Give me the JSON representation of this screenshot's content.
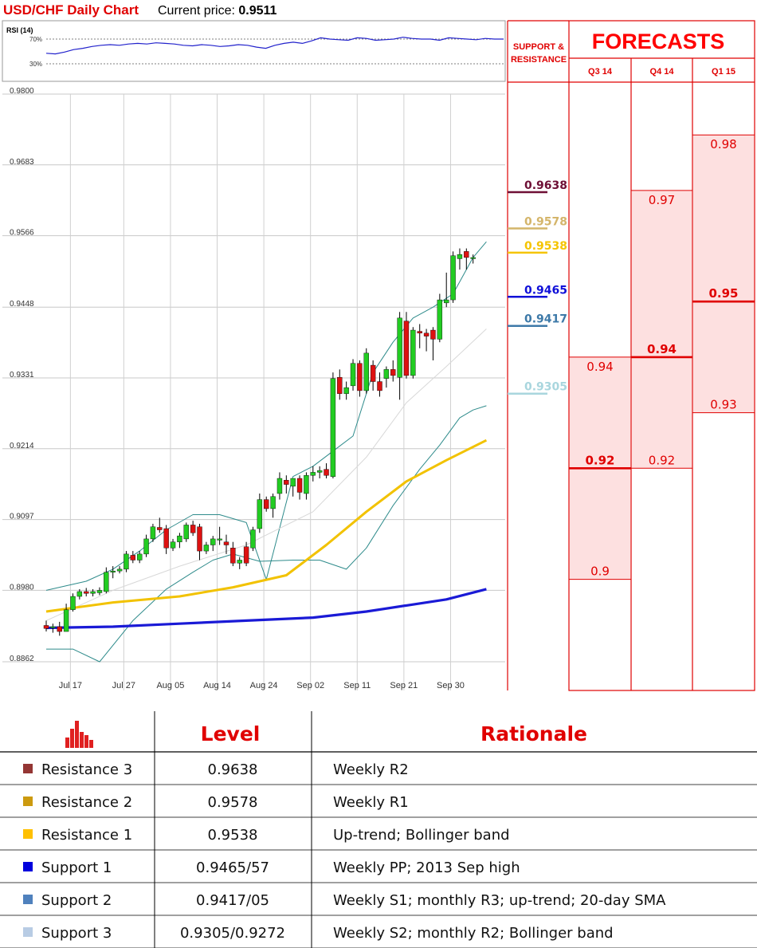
{
  "header": {
    "title": "USD/CHF Daily Chart",
    "price_label": "Current price:",
    "price_value": "0.9511"
  },
  "rsi": {
    "label": "RSI (14)",
    "levels": [
      "70%",
      "30%"
    ],
    "values": [
      47,
      46,
      49,
      53,
      55,
      58,
      60,
      61,
      60,
      62,
      63,
      62,
      64,
      63,
      62,
      60,
      59,
      61,
      60,
      58,
      59,
      61,
      60,
      57,
      55,
      60,
      63,
      65,
      63,
      67,
      72,
      70,
      69,
      68,
      72,
      71,
      68,
      69,
      70,
      73,
      71,
      70,
      70,
      68,
      72,
      71,
      70,
      69,
      71,
      70,
      70
    ]
  },
  "chart_data": [
    {
      "type": "candlestick",
      "title": "USD/CHF Daily Chart",
      "y_ticks": [
        "0.9800",
        "0.9683",
        "0.9566",
        "0.9448",
        "0.9331",
        "0.9214",
        "0.9097",
        "0.8980",
        "0.8862"
      ],
      "ylim": [
        0.8862,
        0.98
      ],
      "x_ticks": [
        "Jul 17",
        "Jul 27",
        "Aug 05",
        "Aug 14",
        "Aug 24",
        "Sep 02",
        "Sep 11",
        "Sep 21",
        "Sep 30"
      ],
      "x_tick_index": [
        1,
        9,
        16,
        23,
        30,
        37,
        44,
        51,
        58
      ],
      "grid": true,
      "candles": [
        [
          0.8922,
          0.893,
          0.8912,
          0.8917
        ],
        [
          0.8918,
          0.8925,
          0.891,
          0.892
        ],
        [
          0.892,
          0.8928,
          0.8905,
          0.8912
        ],
        [
          0.8912,
          0.8958,
          0.8912,
          0.8948
        ],
        [
          0.8948,
          0.8975,
          0.8945,
          0.897
        ],
        [
          0.897,
          0.8982,
          0.8965,
          0.8978
        ],
        [
          0.8978,
          0.8984,
          0.897,
          0.8975
        ],
        [
          0.8975,
          0.8982,
          0.897,
          0.8978
        ],
        [
          0.8976,
          0.8985,
          0.8972,
          0.898
        ],
        [
          0.8978,
          0.9018,
          0.8975,
          0.901
        ],
        [
          0.901,
          0.902,
          0.9,
          0.9012
        ],
        [
          0.9012,
          0.902,
          0.9008,
          0.9015
        ],
        [
          0.9015,
          0.9045,
          0.901,
          0.904
        ],
        [
          0.9038,
          0.9045,
          0.9025,
          0.903
        ],
        [
          0.903,
          0.9045,
          0.9025,
          0.904
        ],
        [
          0.904,
          0.9072,
          0.9035,
          0.9065
        ],
        [
          0.9065,
          0.909,
          0.906,
          0.9085
        ],
        [
          0.9084,
          0.91,
          0.9075,
          0.908
        ],
        [
          0.9082,
          0.9088,
          0.904,
          0.905
        ],
        [
          0.905,
          0.9065,
          0.9045,
          0.906
        ],
        [
          0.906,
          0.9075,
          0.905,
          0.907
        ],
        [
          0.9065,
          0.9092,
          0.906,
          0.9088
        ],
        [
          0.9088,
          0.9095,
          0.907,
          0.9075
        ],
        [
          0.9085,
          0.909,
          0.903,
          0.9045
        ],
        [
          0.9045,
          0.906,
          0.904,
          0.9055
        ],
        [
          0.9055,
          0.907,
          0.9045,
          0.9065
        ],
        [
          0.9065,
          0.9085,
          0.9055,
          0.9065
        ],
        [
          0.906,
          0.9072,
          0.904,
          0.9055
        ],
        [
          0.905,
          0.906,
          0.902,
          0.9025
        ],
        [
          0.9025,
          0.9035,
          0.9015,
          0.903
        ],
        [
          0.9052,
          0.906,
          0.902,
          0.9025
        ],
        [
          0.905,
          0.9085,
          0.9045,
          0.908
        ],
        [
          0.9082,
          0.914,
          0.9075,
          0.913
        ],
        [
          0.913,
          0.9135,
          0.911,
          0.9115
        ],
        [
          0.9115,
          0.914,
          0.91,
          0.9135
        ],
        [
          0.914,
          0.9175,
          0.913,
          0.9165
        ],
        [
          0.9162,
          0.917,
          0.914,
          0.9155
        ],
        [
          0.9152,
          0.9165,
          0.9135,
          0.9165
        ],
        [
          0.9165,
          0.917,
          0.913,
          0.9142
        ],
        [
          0.914,
          0.9175,
          0.913,
          0.917
        ],
        [
          0.917,
          0.9185,
          0.916,
          0.9175
        ],
        [
          0.9175,
          0.9185,
          0.9165,
          0.9178
        ],
        [
          0.918,
          0.919,
          0.9165,
          0.917
        ],
        [
          0.9168,
          0.934,
          0.9165,
          0.933
        ],
        [
          0.9332,
          0.9345,
          0.9295,
          0.9305
        ],
        [
          0.9305,
          0.9325,
          0.9295,
          0.9315
        ],
        [
          0.9318,
          0.9362,
          0.931,
          0.9355
        ],
        [
          0.9355,
          0.936,
          0.93,
          0.931
        ],
        [
          0.931,
          0.938,
          0.9305,
          0.9372
        ],
        [
          0.9352,
          0.936,
          0.931,
          0.9325
        ],
        [
          0.9325,
          0.934,
          0.93,
          0.931
        ],
        [
          0.933,
          0.935,
          0.9315,
          0.9345
        ],
        [
          0.9345,
          0.936,
          0.9325,
          0.9335
        ],
        [
          0.9332,
          0.944,
          0.9295,
          0.943
        ],
        [
          0.9425,
          0.944,
          0.933,
          0.9335
        ],
        [
          0.9335,
          0.9415,
          0.933,
          0.941
        ],
        [
          0.9408,
          0.942,
          0.938,
          0.9405
        ],
        [
          0.9405,
          0.9412,
          0.9375,
          0.94
        ],
        [
          0.941,
          0.9415,
          0.936,
          0.9395
        ],
        [
          0.9395,
          0.947,
          0.939,
          0.946
        ],
        [
          0.9455,
          0.9505,
          0.9448,
          0.946
        ],
        [
          0.946,
          0.954,
          0.9455,
          0.9533
        ],
        [
          0.9528,
          0.9545,
          0.951,
          0.9535
        ],
        [
          0.954,
          0.9545,
          0.951,
          0.953
        ],
        [
          0.953,
          0.9535,
          0.952,
          0.953
        ]
      ],
      "series": [
        {
          "name": "",
          "kind": "bollinger-upper",
          "color": "#2e8b8b",
          "points": [
            [
              0,
              0.898
            ],
            [
              6,
              0.8995
            ],
            [
              10,
              0.9015
            ],
            [
              14,
              0.9045
            ],
            [
              18,
              0.908
            ],
            [
              22,
              0.9105
            ],
            [
              26,
              0.9105
            ],
            [
              30,
              0.9092
            ],
            [
              33,
              0.8998
            ],
            [
              37,
              0.9168
            ],
            [
              40,
              0.9185
            ],
            [
              43,
              0.921
            ],
            [
              46,
              0.9235
            ],
            [
              49,
              0.934
            ],
            [
              52,
              0.939
            ],
            [
              55,
              0.943
            ],
            [
              58,
              0.9448
            ],
            [
              61,
              0.947
            ],
            [
              64,
              0.953
            ],
            [
              66,
              0.9556
            ]
          ]
        },
        {
          "name": "",
          "kind": "bollinger-lower",
          "color": "#2e8b8b",
          "points": [
            [
              0,
              0.8883
            ],
            [
              4,
              0.8883
            ],
            [
              8,
              0.8862
            ],
            [
              13,
              0.893
            ],
            [
              18,
              0.8982
            ],
            [
              22,
              0.901
            ],
            [
              25,
              0.903
            ],
            [
              28,
              0.904
            ],
            [
              32,
              0.9028
            ],
            [
              37,
              0.903
            ],
            [
              41,
              0.903
            ],
            [
              45,
              0.9015
            ],
            [
              48,
              0.905
            ],
            [
              52,
              0.912
            ],
            [
              56,
              0.918
            ],
            [
              59,
              0.922
            ],
            [
              62,
              0.9265
            ],
            [
              64,
              0.9278
            ],
            [
              66,
              0.9285
            ]
          ]
        },
        {
          "name": "",
          "kind": "sma-20",
          "color": "#d8d8d8",
          "points": [
            [
              0,
              0.893
            ],
            [
              10,
              0.898
            ],
            [
              20,
              0.902
            ],
            [
              30,
              0.9055
            ],
            [
              40,
              0.911
            ],
            [
              48,
              0.92
            ],
            [
              54,
              0.929
            ],
            [
              60,
              0.935
            ],
            [
              66,
              0.9412
            ]
          ]
        },
        {
          "name": "",
          "kind": "sma-50",
          "color": "#f2c200",
          "points": [
            [
              0,
              0.8945
            ],
            [
              10,
              0.896
            ],
            [
              20,
              0.897
            ],
            [
              28,
              0.8985
            ],
            [
              36,
              0.9005
            ],
            [
              42,
              0.9055
            ],
            [
              48,
              0.911
            ],
            [
              54,
              0.916
            ],
            [
              60,
              0.9195
            ],
            [
              66,
              0.9228
            ]
          ]
        },
        {
          "name": "",
          "kind": "sma-200",
          "color": "#1a1ad6",
          "points": [
            [
              0,
              0.8918
            ],
            [
              10,
              0.892
            ],
            [
              20,
              0.8925
            ],
            [
              30,
              0.893
            ],
            [
              40,
              0.8935
            ],
            [
              48,
              0.8945
            ],
            [
              54,
              0.8955
            ],
            [
              60,
              0.8965
            ],
            [
              66,
              0.8982
            ]
          ]
        }
      ]
    },
    {
      "type": "table",
      "title": "FORECASTS",
      "columns": [
        "Q3 14",
        "Q4 14",
        "Q1 15"
      ],
      "ylim": [
        0.88,
        0.9895
      ],
      "ranges": [
        {
          "low": 0.9,
          "mid": 0.92,
          "high": 0.94,
          "labels": [
            "0.9",
            "0.92",
            "0.94"
          ]
        },
        {
          "low": 0.92,
          "mid": 0.94,
          "high": 0.97,
          "labels": [
            "0.92",
            "0.94",
            "0.97"
          ]
        },
        {
          "low": 0.93,
          "mid": 0.95,
          "high": 0.98,
          "labels": [
            "0.93",
            "0.95",
            "0.98"
          ]
        }
      ]
    }
  ],
  "support_resistance": {
    "title_line1": "SUPPORT &",
    "title_line2": "RESISTANCE",
    "levels": [
      {
        "value": 0.9638,
        "label": "0.9638",
        "color": "#6e0f35"
      },
      {
        "value": 0.9578,
        "label": "0.9578",
        "color": "#d4b56a"
      },
      {
        "value": 0.9538,
        "label": "0.9538",
        "color": "#f5c400"
      },
      {
        "value": 0.9465,
        "label": "0.9465",
        "color": "#1010d8"
      },
      {
        "value": 0.9417,
        "label": "0.9417",
        "color": "#3d79a8"
      },
      {
        "value": 0.9305,
        "label": "0.9305",
        "color": "#a9d6de"
      }
    ]
  },
  "table": {
    "headers": {
      "level": "Level",
      "rationale": "Rationale"
    },
    "rows": [
      {
        "name": "Resistance 3",
        "level": "0.9638",
        "rationale": "Weekly R2",
        "color": "#943634"
      },
      {
        "name": "Resistance 2",
        "level": "0.9578",
        "rationale": "Weekly R1",
        "color": "#cc9a0f"
      },
      {
        "name": "Resistance 1",
        "level": "0.9538",
        "rationale": "Up-trend; Bollinger band",
        "color": "#ffc000"
      },
      {
        "name": "Support 1",
        "level": "0.9465/57",
        "rationale": "Weekly PP; 2013 Sep high",
        "color": "#0000dd"
      },
      {
        "name": "Support 2",
        "level": "0.9417/05",
        "rationale": "Weekly S1; monthly R3; up-trend; 20-day SMA",
        "color": "#4f81bd"
      },
      {
        "name": "Support 3",
        "level": "0.9305/0.9272",
        "rationale": "Weekly S2; monthly R2; Bollinger band",
        "color": "#b8cce4"
      }
    ]
  },
  "colors": {
    "title_red": "#e00000",
    "forecast_red": "#ff0000",
    "forecast_fill": "#fde0e0",
    "bull": "#22cc22",
    "bear": "#dd1111"
  }
}
